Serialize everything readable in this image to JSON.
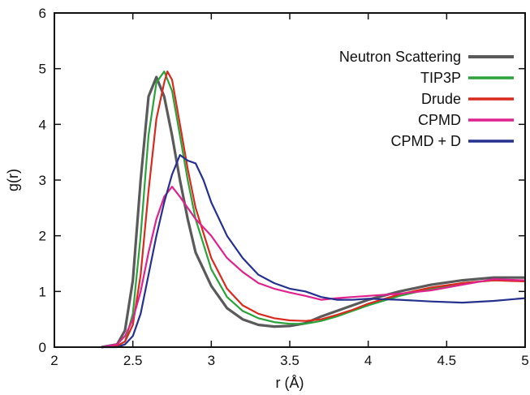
{
  "chart_data": {
    "type": "line",
    "title": "",
    "xlabel": "r (Å)",
    "ylabel": "g(r)",
    "xlim": [
      2,
      5
    ],
    "ylim": [
      0,
      6
    ],
    "x_ticks": [
      "2",
      "2.5",
      "3",
      "3.5",
      "4",
      "4.5",
      "5"
    ],
    "y_ticks": [
      "0",
      "1",
      "2",
      "3",
      "4",
      "5",
      "6"
    ],
    "grid": false,
    "legend_position": "top-right",
    "series": [
      {
        "name": "Neutron Scattering",
        "color": "#5a5a5a",
        "values": [
          [
            2.3,
            0.0
          ],
          [
            2.4,
            0.05
          ],
          [
            2.45,
            0.3
          ],
          [
            2.5,
            1.2
          ],
          [
            2.55,
            3.0
          ],
          [
            2.6,
            4.5
          ],
          [
            2.65,
            4.85
          ],
          [
            2.7,
            4.5
          ],
          [
            2.75,
            3.8
          ],
          [
            2.8,
            3.0
          ],
          [
            2.85,
            2.3
          ],
          [
            2.9,
            1.7
          ],
          [
            3.0,
            1.1
          ],
          [
            3.1,
            0.7
          ],
          [
            3.2,
            0.5
          ],
          [
            3.3,
            0.4
          ],
          [
            3.4,
            0.37
          ],
          [
            3.5,
            0.38
          ],
          [
            3.6,
            0.43
          ],
          [
            3.7,
            0.55
          ],
          [
            3.8,
            0.65
          ],
          [
            3.9,
            0.75
          ],
          [
            4.0,
            0.85
          ],
          [
            4.2,
            1.0
          ],
          [
            4.4,
            1.12
          ],
          [
            4.6,
            1.2
          ],
          [
            4.8,
            1.25
          ],
          [
            5.0,
            1.25
          ]
        ]
      },
      {
        "name": "TIP3P",
        "color": "#2aa33a",
        "values": [
          [
            2.3,
            0.0
          ],
          [
            2.4,
            0.02
          ],
          [
            2.45,
            0.1
          ],
          [
            2.5,
            0.6
          ],
          [
            2.55,
            2.0
          ],
          [
            2.6,
            3.8
          ],
          [
            2.65,
            4.75
          ],
          [
            2.7,
            4.95
          ],
          [
            2.75,
            4.6
          ],
          [
            2.8,
            3.8
          ],
          [
            2.85,
            3.0
          ],
          [
            2.9,
            2.3
          ],
          [
            3.0,
            1.4
          ],
          [
            3.1,
            0.9
          ],
          [
            3.2,
            0.65
          ],
          [
            3.3,
            0.52
          ],
          [
            3.4,
            0.45
          ],
          [
            3.5,
            0.42
          ],
          [
            3.6,
            0.42
          ],
          [
            3.7,
            0.47
          ],
          [
            3.8,
            0.55
          ],
          [
            3.9,
            0.65
          ],
          [
            4.0,
            0.75
          ],
          [
            4.2,
            0.92
          ],
          [
            4.4,
            1.05
          ],
          [
            4.6,
            1.15
          ],
          [
            4.8,
            1.2
          ],
          [
            5.0,
            1.2
          ]
        ]
      },
      {
        "name": "Drude",
        "color": "#d92a1e",
        "values": [
          [
            2.3,
            0.0
          ],
          [
            2.4,
            0.02
          ],
          [
            2.45,
            0.1
          ],
          [
            2.5,
            0.4
          ],
          [
            2.55,
            1.3
          ],
          [
            2.6,
            2.8
          ],
          [
            2.65,
            4.1
          ],
          [
            2.7,
            4.75
          ],
          [
            2.72,
            4.95
          ],
          [
            2.75,
            4.8
          ],
          [
            2.8,
            4.0
          ],
          [
            2.85,
            3.2
          ],
          [
            2.9,
            2.5
          ],
          [
            3.0,
            1.6
          ],
          [
            3.1,
            1.05
          ],
          [
            3.2,
            0.75
          ],
          [
            3.3,
            0.6
          ],
          [
            3.4,
            0.52
          ],
          [
            3.5,
            0.48
          ],
          [
            3.6,
            0.47
          ],
          [
            3.7,
            0.5
          ],
          [
            3.8,
            0.58
          ],
          [
            3.9,
            0.67
          ],
          [
            4.0,
            0.78
          ],
          [
            4.2,
            0.95
          ],
          [
            4.4,
            1.07
          ],
          [
            4.6,
            1.15
          ],
          [
            4.8,
            1.2
          ],
          [
            5.0,
            1.18
          ]
        ]
      },
      {
        "name": "CPMD",
        "color": "#e0228f",
        "values": [
          [
            2.3,
            0.0
          ],
          [
            2.4,
            0.05
          ],
          [
            2.45,
            0.2
          ],
          [
            2.5,
            0.5
          ],
          [
            2.55,
            1.0
          ],
          [
            2.6,
            1.7
          ],
          [
            2.65,
            2.3
          ],
          [
            2.7,
            2.7
          ],
          [
            2.75,
            2.88
          ],
          [
            2.8,
            2.7
          ],
          [
            2.85,
            2.5
          ],
          [
            2.9,
            2.3
          ],
          [
            3.0,
            2.0
          ],
          [
            3.1,
            1.6
          ],
          [
            3.2,
            1.35
          ],
          [
            3.3,
            1.15
          ],
          [
            3.4,
            1.05
          ],
          [
            3.5,
            0.98
          ],
          [
            3.6,
            0.92
          ],
          [
            3.7,
            0.85
          ],
          [
            3.8,
            0.88
          ],
          [
            3.9,
            0.9
          ],
          [
            4.0,
            0.92
          ],
          [
            4.2,
            0.96
          ],
          [
            4.4,
            1.02
          ],
          [
            4.6,
            1.12
          ],
          [
            4.8,
            1.22
          ],
          [
            5.0,
            1.2
          ]
        ]
      },
      {
        "name": "CPMD + D",
        "color": "#25308f",
        "values": [
          [
            2.3,
            0.0
          ],
          [
            2.4,
            0.0
          ],
          [
            2.45,
            0.05
          ],
          [
            2.5,
            0.2
          ],
          [
            2.55,
            0.6
          ],
          [
            2.6,
            1.3
          ],
          [
            2.65,
            2.0
          ],
          [
            2.7,
            2.6
          ],
          [
            2.75,
            3.1
          ],
          [
            2.8,
            3.45
          ],
          [
            2.85,
            3.35
          ],
          [
            2.9,
            3.3
          ],
          [
            2.95,
            3.0
          ],
          [
            3.0,
            2.6
          ],
          [
            3.1,
            2.0
          ],
          [
            3.2,
            1.6
          ],
          [
            3.3,
            1.3
          ],
          [
            3.4,
            1.15
          ],
          [
            3.5,
            1.05
          ],
          [
            3.6,
            1.0
          ],
          [
            3.7,
            0.9
          ],
          [
            3.8,
            0.85
          ],
          [
            3.9,
            0.85
          ],
          [
            4.0,
            0.87
          ],
          [
            4.2,
            0.85
          ],
          [
            4.4,
            0.82
          ],
          [
            4.6,
            0.8
          ],
          [
            4.8,
            0.83
          ],
          [
            5.0,
            0.88
          ]
        ]
      }
    ]
  }
}
